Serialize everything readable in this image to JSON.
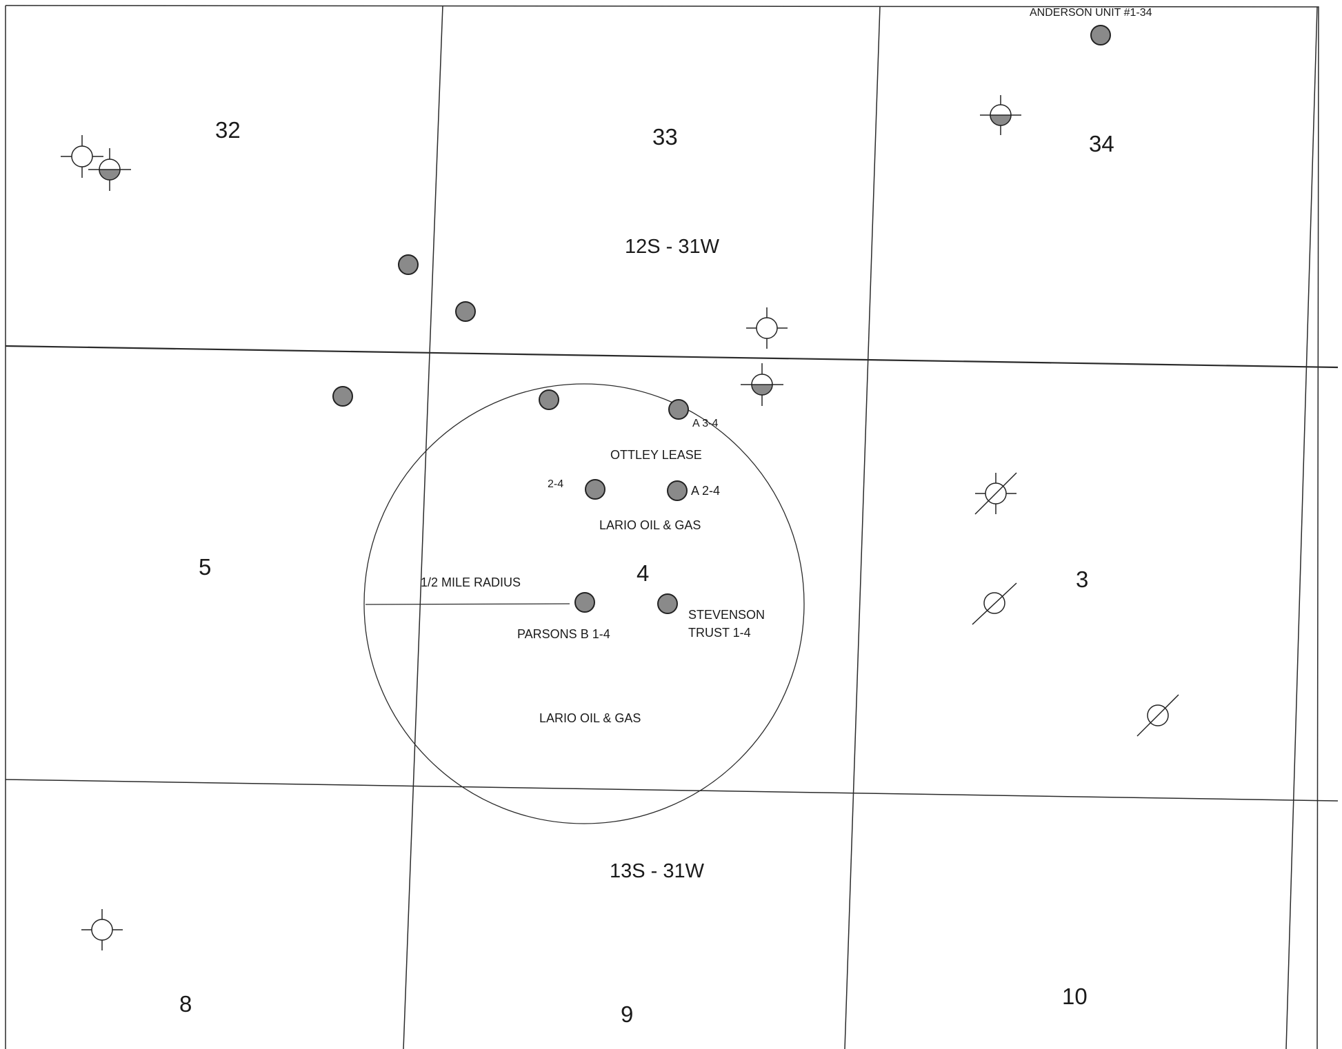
{
  "sections": {
    "s32": "32",
    "s33": "33",
    "s34": "34",
    "s5": "5",
    "s4": "4",
    "s3": "3",
    "s8": "8",
    "s9": "9",
    "s10": "10"
  },
  "townships": {
    "north": "12S - 31W",
    "south": "13S - 31W"
  },
  "labels": {
    "anderson": "ANDERSON UNIT #1-34",
    "a34": "A 3-4",
    "ottley": "OTTLEY LEASE",
    "w24": "2-4",
    "a24": "A 2-4",
    "lario_upper": "LARIO OIL & GAS",
    "radius": "1/2 MILE RADIUS",
    "parsons": "PARSONS B 1-4",
    "stevenson_1": "STEVENSON",
    "stevenson_2": "TRUST 1-4",
    "lario_lower": "LARIO OIL & GAS"
  },
  "colors": {
    "line": "#2a2a2a",
    "well_fill": "#8a8a8a",
    "well_stroke": "#222222"
  },
  "legend_icons": {
    "oil_well": "filled-circle",
    "location": "open-circle-crosshair",
    "oil_and_gas_well": "half-filled-circle-crosshair",
    "plugged_abandoned": "circle-slash",
    "dry_hole": "circle-slash-crosshair"
  }
}
